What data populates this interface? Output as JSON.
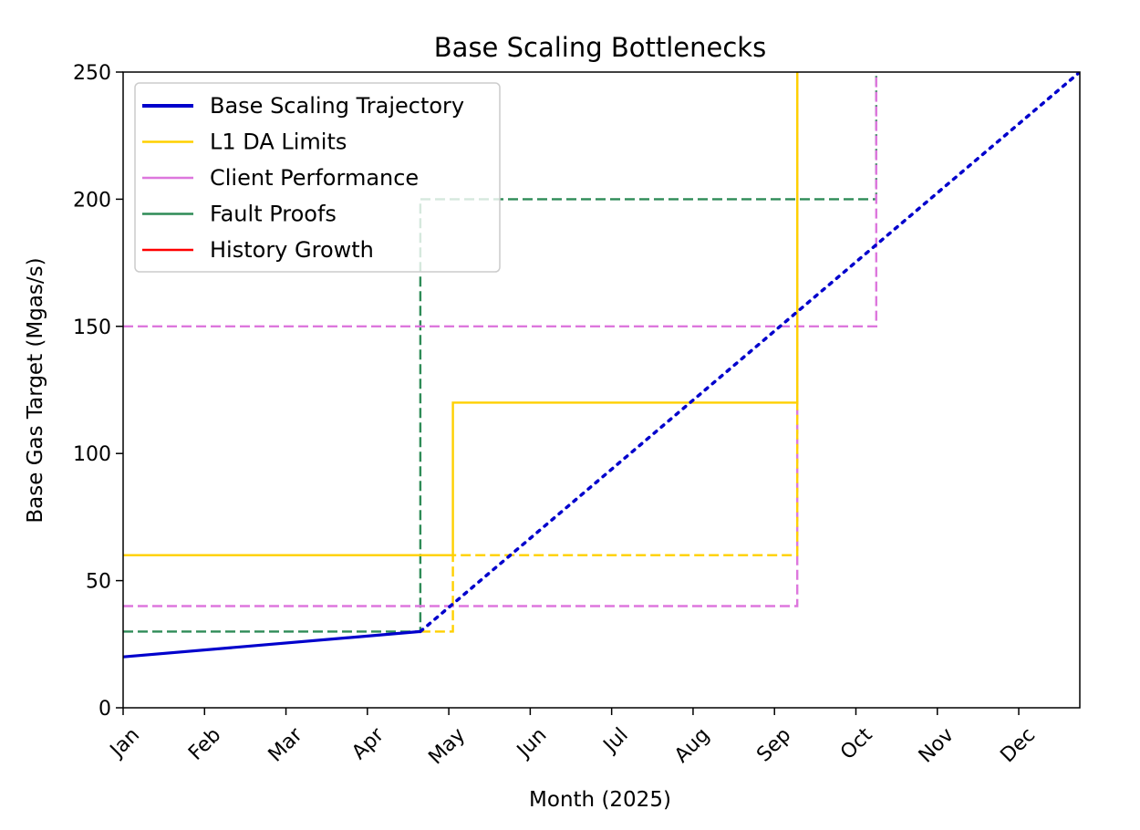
{
  "chart_data": {
    "type": "line",
    "title": "Base Scaling Bottlenecks",
    "xlabel": "Month (2025)",
    "ylabel": "Base Gas Target (Mgas/s)",
    "x_ticks": [
      "Jan",
      "Feb",
      "Mar",
      "Apr",
      "May",
      "Jun",
      "Jul",
      "Aug",
      "Sep",
      "Oct",
      "Nov",
      "Dec"
    ],
    "x_unit": "months since Jan 1, 2025",
    "xlim": [
      0,
      11.75
    ],
    "ylim": [
      0,
      250
    ],
    "y_ticks": [
      0,
      50,
      100,
      150,
      200,
      250
    ],
    "grid": false,
    "legend_position": "upper-left",
    "series": [
      {
        "name": "Base Scaling Trajectory",
        "color": "#0000cc",
        "segments": [
          {
            "style": "solid",
            "points": [
              [
                0,
                20
              ],
              [
                3.65,
                30
              ]
            ]
          },
          {
            "style": "dotted",
            "points": [
              [
                3.65,
                30
              ],
              [
                11.75,
                250
              ]
            ]
          }
        ]
      },
      {
        "name": "L1 DA Limits",
        "color": "#ffd000",
        "segments": [
          {
            "style": "solid",
            "points": [
              [
                0,
                60
              ],
              [
                4.05,
                60
              ]
            ]
          },
          {
            "style": "dashed",
            "points": [
              [
                3.65,
                30
              ],
              [
                4.05,
                30
              ],
              [
                4.05,
                60
              ],
              [
                8.28,
                60
              ],
              [
                8.28,
                250
              ]
            ]
          },
          {
            "style": "solid",
            "points": [
              [
                4.05,
                60
              ],
              [
                4.05,
                120
              ],
              [
                8.28,
                120
              ],
              [
                8.28,
                250
              ]
            ]
          }
        ]
      },
      {
        "name": "Client Performance",
        "color": "#dd77dd",
        "segments": [
          {
            "style": "dashed",
            "points": [
              [
                0,
                40
              ],
              [
                8.28,
                40
              ],
              [
                8.28,
                250
              ]
            ]
          },
          {
            "style": "dashed",
            "points": [
              [
                0,
                150
              ],
              [
                9.25,
                150
              ],
              [
                9.25,
                250
              ]
            ]
          }
        ]
      },
      {
        "name": "Fault Proofs",
        "color": "#2e8b57",
        "segments": [
          {
            "style": "dashed",
            "points": [
              [
                0,
                30
              ],
              [
                3.65,
                30
              ],
              [
                3.65,
                200
              ],
              [
                9.25,
                200
              ],
              [
                9.25,
                250
              ]
            ]
          }
        ]
      },
      {
        "name": "History Growth",
        "color": "#ff0000",
        "segments": []
      }
    ]
  }
}
